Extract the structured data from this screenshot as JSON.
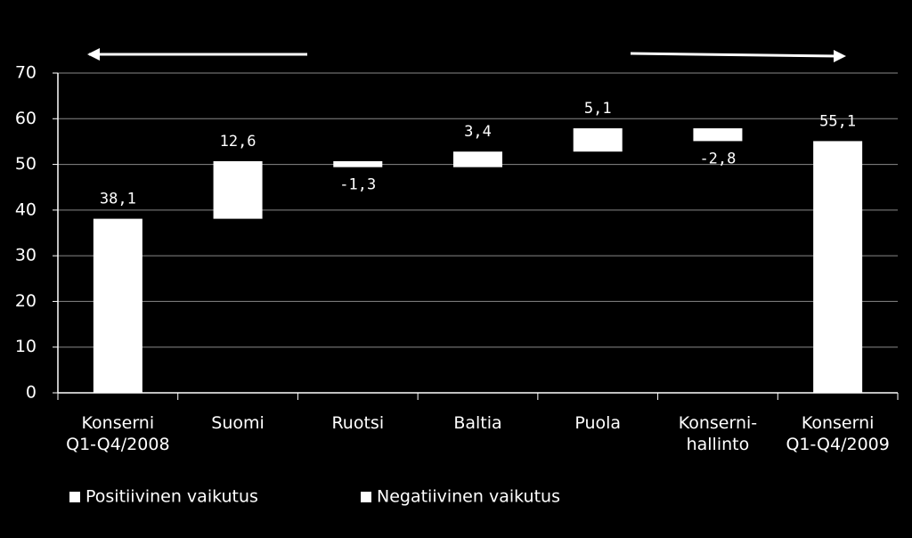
{
  "chart_data": {
    "type": "waterfall",
    "categories": [
      "Konserni\nQ1-Q4/2008",
      "Suomi",
      "Ruotsi",
      "Baltia",
      "Puola",
      "Konserni-\nhallinto",
      "Konserni\nQ1-Q4/2009"
    ],
    "values": [
      38.1,
      12.6,
      -1.3,
      3.4,
      5.1,
      -2.8,
      55.1
    ],
    "value_labels": [
      "38,1",
      "12,6",
      "-1,3",
      "3,4",
      "5,1",
      "-2,8",
      "55,1"
    ],
    "color": "#ffffff",
    "ylim": [
      0,
      70
    ],
    "yticks": [
      0,
      10,
      20,
      30,
      40,
      50,
      60,
      70
    ],
    "grid": true,
    "legend": [
      {
        "name": "Positiivinen vaikutus",
        "color": "#ffffff"
      },
      {
        "name": "Negatiivinen vaikutus",
        "color": "#ffffff"
      }
    ]
  }
}
